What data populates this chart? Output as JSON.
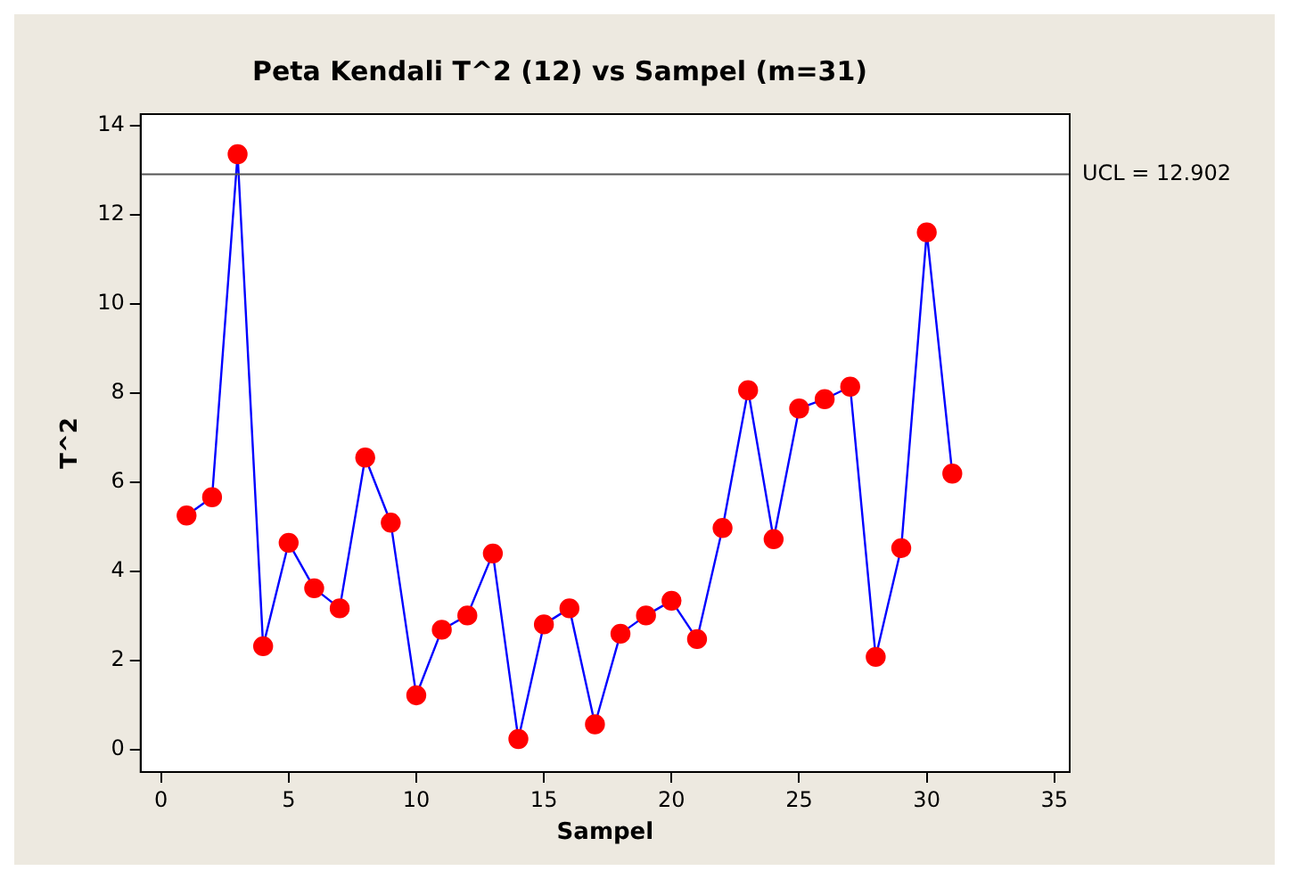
{
  "chart_data": {
    "type": "line",
    "title": "Peta Kendali T^2 (12) vs Sampel (m=31)",
    "xlabel": "Sampel",
    "ylabel": "T^2",
    "x": [
      1,
      2,
      3,
      4,
      5,
      6,
      7,
      8,
      9,
      10,
      11,
      12,
      13,
      14,
      15,
      16,
      17,
      18,
      19,
      20,
      21,
      22,
      23,
      24,
      25,
      26,
      27,
      28,
      29,
      30,
      31
    ],
    "series": [
      {
        "color": "#0000ff",
        "colors": [
          "#ff0000",
          "#ff0000",
          "#ff0000",
          "#ff0000",
          "#ff0000",
          "#ff0000",
          "#ff0000",
          "#ff0000",
          "#ff0000",
          "#ff0000",
          "#ff0000",
          "#ff0000",
          "#ff0000",
          "#ff0000",
          "#ff0000",
          "#ff0000",
          "#ff0000",
          "#ff0000",
          "#ff0000",
          "#ff0000",
          "#ff0000",
          "#ff0000",
          "#ff0000",
          "#ff0000",
          "#ff0000",
          "#ff0000",
          "#ff0000",
          "#ff0000",
          "#ff0000",
          "#ff0000",
          "#ff0000"
        ],
        "values": [
          5.25,
          5.66,
          13.35,
          2.32,
          4.64,
          3.62,
          3.17,
          6.55,
          5.09,
          1.22,
          2.69,
          3.01,
          4.4,
          0.24,
          2.81,
          3.17,
          0.57,
          2.6,
          3.01,
          3.34,
          2.48,
          4.97,
          8.06,
          4.72,
          7.65,
          7.86,
          8.14,
          2.08,
          4.52,
          11.6,
          6.19
        ]
      }
    ],
    "marker": "circle",
    "line_style": "solid",
    "xlim": [
      -0.8,
      35.6
    ],
    "xticks": [
      0,
      5,
      10,
      15,
      20,
      25,
      30,
      35
    ],
    "ylim": [
      -0.5,
      14.25
    ],
    "yticks": [
      0,
      2,
      4,
      6,
      8,
      10,
      12,
      14
    ],
    "grid": false,
    "legend": false,
    "ref_lines": [
      {
        "axis": "y",
        "value": 12.902,
        "label": "UCL = 12.902",
        "color": "#555555",
        "line_style": "solid"
      }
    ]
  }
}
